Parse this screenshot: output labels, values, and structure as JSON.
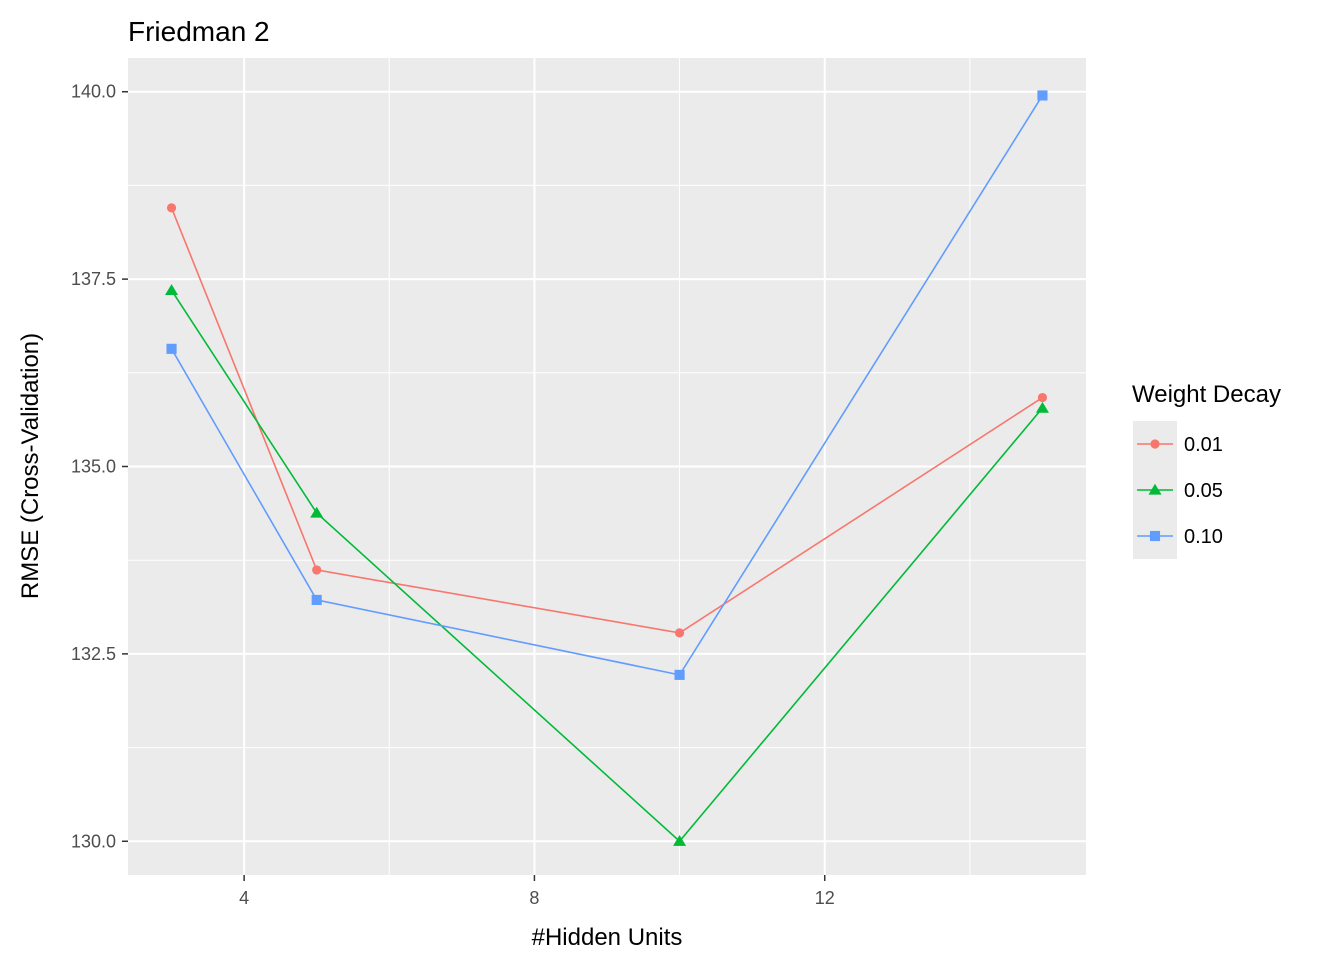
{
  "chart_data": {
    "type": "line",
    "title": "Friedman 2",
    "xlabel": "#Hidden Units",
    "ylabel": "RMSE (Cross-Validation)",
    "x": [
      3,
      5,
      10,
      15
    ],
    "xlim": [
      2.4,
      15.6
    ],
    "ylim": [
      129.55,
      140.45
    ],
    "xticks": [
      4,
      8,
      12
    ],
    "yticks": [
      130.0,
      132.5,
      135.0,
      137.5,
      140.0
    ],
    "ytick_labels": [
      "130.0",
      "132.5",
      "135.0",
      "137.5",
      "140.0"
    ],
    "grid": true,
    "legend": {
      "title": "Weight Decay",
      "position": "right"
    },
    "series": [
      {
        "name": "0.01",
        "color": "#F8766D",
        "marker": "circle",
        "values": [
          138.45,
          133.62,
          132.78,
          135.92
        ]
      },
      {
        "name": "0.05",
        "color": "#00BA38",
        "marker": "triangle",
        "values": [
          137.35,
          134.38,
          130.0,
          135.78
        ]
      },
      {
        "name": "0.10",
        "color": "#619CFF",
        "marker": "square",
        "values": [
          136.57,
          133.22,
          132.22,
          139.95
        ]
      }
    ]
  }
}
